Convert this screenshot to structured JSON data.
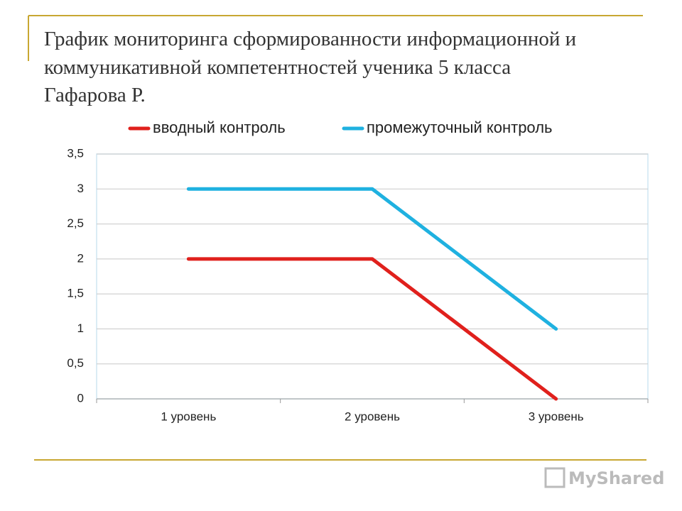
{
  "chart_data": {
    "type": "line",
    "title_lines": [
      "График мониторинга сформированности информационной и",
      "коммуникативной компетентностей ученика 5 класса",
      "Гафарова Р."
    ],
    "categories": [
      "1 уровень",
      "2 уровень",
      "3 уровень"
    ],
    "series": [
      {
        "name": "вводный контроль",
        "color": "#e0201c",
        "values": [
          2,
          2,
          0
        ]
      },
      {
        "name": "промежуточный контроль",
        "color": "#1fb1e0",
        "values": [
          3,
          3,
          1
        ]
      }
    ],
    "ylim": [
      0,
      3.5
    ],
    "yticks": [
      0,
      {
        "value": 0.5,
        "label": "0,5"
      },
      1,
      {
        "value": 1.5,
        "label": "1,5"
      },
      2,
      {
        "value": 2.5,
        "label": "2,5"
      },
      3,
      {
        "value": 3.5,
        "label": "3,5"
      }
    ],
    "grid": true,
    "legend": "top",
    "watermark": "MyShared"
  }
}
